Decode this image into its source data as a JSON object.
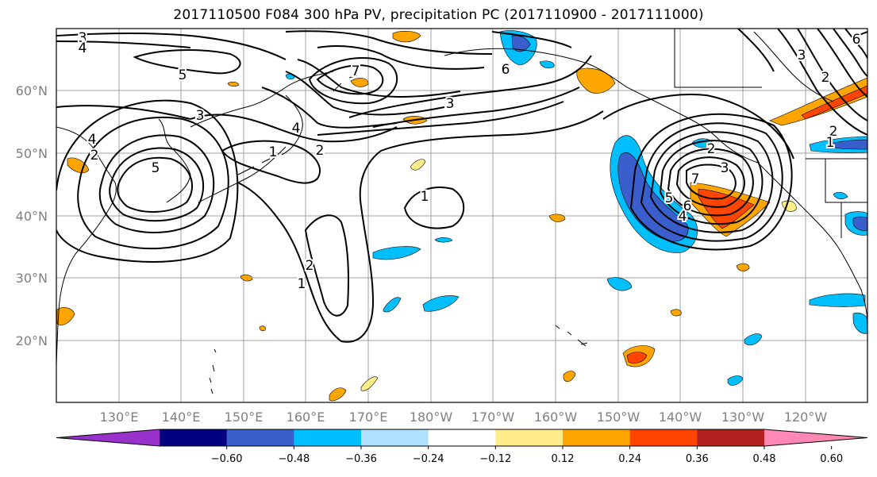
{
  "title": "2017110500 F084 300 hPa PV, precipitation PC (2017110900 - 2017111000)",
  "latitude_labels": [
    "60°N",
    "50°N",
    "40°N",
    "30°N",
    "20°N"
  ],
  "longitude_labels": [
    "130°E",
    "140°E",
    "150°E",
    "160°E",
    "170°E",
    "180°W",
    "170°W",
    "160°W",
    "150°W",
    "140°W",
    "130°W",
    "120°W"
  ],
  "colorbar": {
    "tick_labels": [
      "−0.60",
      "−0.48",
      "−0.36",
      "−0.24",
      "−0.12",
      "0.12",
      "0.24",
      "0.36",
      "0.48",
      "0.60"
    ],
    "colors": [
      "#9932CC",
      "#000080",
      "#3A5FCD",
      "#00BFFF",
      "#B0E2FF",
      "#FFFFFF",
      "#FFEC8B",
      "#FFA500",
      "#FF4500",
      "#B22222",
      "#FF89B4"
    ]
  },
  "contour_labels": [
    "3",
    "4",
    "5",
    "6",
    "7",
    "4",
    "3",
    "2",
    "1",
    "1",
    "2",
    "5",
    "3",
    "4",
    "2",
    "1",
    "2",
    "3",
    "4",
    "5",
    "6",
    "7",
    "2",
    "1",
    "2",
    "6",
    "3"
  ]
}
